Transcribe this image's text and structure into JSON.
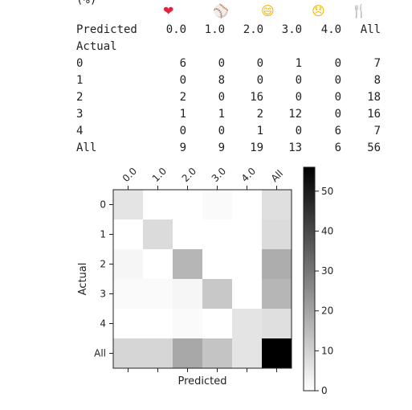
{
  "table": {
    "clipped_header": "(%)",
    "emojis": [
      {
        "glyph": "❤",
        "color": "#e0243b",
        "name": "heart-icon"
      },
      {
        "glyph": "⚾",
        "color": "#444444",
        "name": "baseball-icon"
      },
      {
        "glyph": "😄",
        "color": "#f4b400",
        "name": "grinning-face-icon"
      },
      {
        "glyph": "😞",
        "color": "#f4b400",
        "name": "disappointed-face-icon"
      },
      {
        "glyph": "🍴",
        "color": "#555555",
        "name": "fork-and-knife-icon"
      }
    ],
    "col_label": "Predicted",
    "columns": [
      "0.0",
      "1.0",
      "2.0",
      "3.0",
      "4.0",
      "All"
    ],
    "row_label": "Actual",
    "rows": [
      {
        "label": "0",
        "values": [
          "6",
          "0",
          "0",
          "1",
          "0",
          "7"
        ]
      },
      {
        "label": "1",
        "values": [
          "0",
          "8",
          "0",
          "0",
          "0",
          "8"
        ]
      },
      {
        "label": "2",
        "values": [
          "2",
          "0",
          "16",
          "0",
          "0",
          "18"
        ]
      },
      {
        "label": "3",
        "values": [
          "1",
          "1",
          "2",
          "12",
          "0",
          "16"
        ]
      },
      {
        "label": "4",
        "values": [
          "0",
          "0",
          "1",
          "0",
          "6",
          "7"
        ]
      },
      {
        "label": "All",
        "values": [
          "9",
          "9",
          "19",
          "13",
          "6",
          "56"
        ]
      }
    ]
  },
  "chart_data": {
    "type": "heatmap",
    "xlabel": "Predicted",
    "ylabel": "Actual",
    "x_categories": [
      "0.0",
      "1.0",
      "2.0",
      "3.0",
      "4.0",
      "All"
    ],
    "y_categories": [
      "0",
      "1",
      "2",
      "3",
      "4",
      "All"
    ],
    "values": [
      [
        6,
        0,
        0,
        1,
        0,
        7
      ],
      [
        0,
        8,
        0,
        0,
        0,
        8
      ],
      [
        2,
        0,
        16,
        0,
        0,
        18
      ],
      [
        1,
        1,
        2,
        12,
        0,
        16
      ],
      [
        0,
        0,
        1,
        0,
        6,
        7
      ],
      [
        9,
        9,
        19,
        13,
        6,
        56
      ]
    ],
    "colormap": "Greys",
    "vmin": 0,
    "vmax": 56,
    "colorbar_ticks": [
      0,
      10,
      20,
      30,
      40,
      50
    ]
  }
}
